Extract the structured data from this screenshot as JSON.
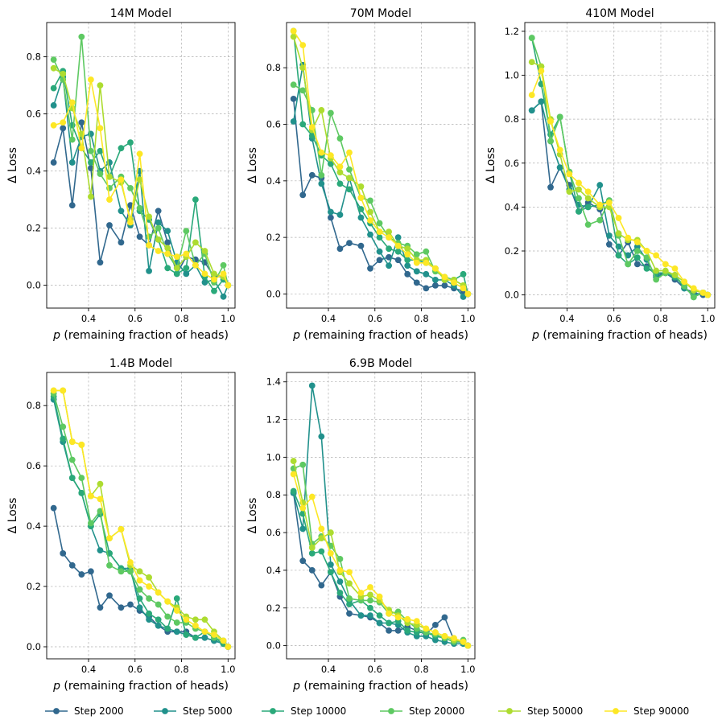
{
  "legend": {
    "entries": [
      "Step 2000",
      "Step 5000",
      "Step 10000",
      "Step 20000",
      "Step 50000",
      "Step 90000"
    ],
    "colors": [
      "#31688e",
      "#21918c",
      "#2aa97a",
      "#5ec962",
      "#addc30",
      "#fde725"
    ]
  },
  "chart_data": [
    {
      "type": "line",
      "title": "14M Model",
      "xlabel": "p (remaining fraction of heads)",
      "ylabel": "Δ Loss",
      "xlim": [
        0.22,
        1.03
      ],
      "ylim": [
        -0.08,
        0.92
      ],
      "xticks": [
        0.4,
        0.6,
        0.8,
        1.0
      ],
      "xtick_labels": [
        "0.4",
        "0.6",
        "0.8",
        "1.0"
      ],
      "yticks": [
        0.0,
        0.2,
        0.4,
        0.6,
        0.8
      ],
      "ytick_labels": [
        "0.0",
        "0.2",
        "0.4",
        "0.6",
        "0.8"
      ],
      "x": [
        0.25,
        0.29,
        0.33,
        0.37,
        0.41,
        0.45,
        0.49,
        0.54,
        0.58,
        0.62,
        0.66,
        0.7,
        0.74,
        0.78,
        0.82,
        0.86,
        0.9,
        0.94,
        0.98,
        1.0
      ],
      "series": [
        {
          "name": "Step 2000",
          "values": [
            0.43,
            0.55,
            0.28,
            0.57,
            0.41,
            0.08,
            0.21,
            0.15,
            0.28,
            0.17,
            0.14,
            0.26,
            0.15,
            0.04,
            0.1,
            0.09,
            0.08,
            0.03,
            0.03,
            0.0
          ]
        },
        {
          "name": "Step 5000",
          "values": [
            0.63,
            0.73,
            0.43,
            0.52,
            0.53,
            0.4,
            0.43,
            0.26,
            0.21,
            0.4,
            0.05,
            0.22,
            0.19,
            0.08,
            0.04,
            0.07,
            0.01,
            0.02,
            -0.04,
            0.0
          ]
        },
        {
          "name": "Step 10000",
          "values": [
            0.69,
            0.75,
            0.56,
            0.48,
            0.43,
            0.47,
            0.38,
            0.48,
            0.5,
            0.26,
            0.23,
            0.16,
            0.06,
            0.04,
            0.06,
            0.3,
            0.03,
            -0.02,
            0.02,
            0.0
          ]
        },
        {
          "name": "Step 20000",
          "values": [
            0.79,
            0.72,
            0.51,
            0.87,
            0.47,
            0.39,
            0.34,
            0.38,
            0.34,
            0.27,
            0.17,
            0.2,
            0.11,
            0.06,
            0.19,
            0.07,
            0.11,
            0.01,
            0.07,
            0.0
          ]
        },
        {
          "name": "Step 50000",
          "values": [
            0.76,
            0.74,
            0.62,
            0.53,
            0.31,
            0.7,
            0.38,
            0.36,
            0.23,
            0.37,
            0.24,
            0.16,
            0.13,
            0.06,
            0.1,
            0.15,
            0.12,
            0.04,
            0.03,
            0.0
          ]
        },
        {
          "name": "Step 90000",
          "values": [
            0.56,
            0.57,
            0.64,
            0.48,
            0.72,
            0.55,
            0.3,
            0.37,
            0.22,
            0.46,
            0.14,
            0.12,
            0.11,
            0.1,
            0.11,
            0.07,
            0.04,
            0.02,
            0.04,
            0.0
          ]
        }
      ]
    },
    {
      "type": "line",
      "title": "70M Model",
      "xlabel": "p (remaining fraction of heads)",
      "ylabel": "Δ Loss",
      "xlim": [
        0.22,
        1.03
      ],
      "ylim": [
        -0.05,
        0.96
      ],
      "xticks": [
        0.4,
        0.6,
        0.8,
        1.0
      ],
      "xtick_labels": [
        "0.4",
        "0.6",
        "0.8",
        "1.0"
      ],
      "yticks": [
        0.0,
        0.2,
        0.4,
        0.6,
        0.8
      ],
      "ytick_labels": [
        "0.0",
        "0.2",
        "0.4",
        "0.6",
        "0.8"
      ],
      "x": [
        0.25,
        0.29,
        0.33,
        0.37,
        0.41,
        0.45,
        0.49,
        0.54,
        0.58,
        0.62,
        0.66,
        0.7,
        0.74,
        0.78,
        0.82,
        0.86,
        0.9,
        0.94,
        0.98,
        1.0
      ],
      "series": [
        {
          "name": "Step 2000",
          "values": [
            0.69,
            0.35,
            0.42,
            0.41,
            0.27,
            0.16,
            0.18,
            0.17,
            0.09,
            0.12,
            0.13,
            0.12,
            0.07,
            0.04,
            0.02,
            0.03,
            0.03,
            0.02,
            0.01,
            0.0
          ]
        },
        {
          "name": "Step 5000",
          "values": [
            0.61,
            0.81,
            0.55,
            0.39,
            0.29,
            0.28,
            0.41,
            0.27,
            0.21,
            0.15,
            0.1,
            0.2,
            0.1,
            0.08,
            0.07,
            0.05,
            0.05,
            0.03,
            -0.01,
            0.0
          ]
        },
        {
          "name": "Step 10000",
          "values": [
            0.93,
            0.6,
            0.56,
            0.49,
            0.46,
            0.39,
            0.37,
            0.3,
            0.25,
            0.2,
            0.16,
            0.15,
            0.12,
            0.12,
            0.11,
            0.09,
            0.05,
            0.05,
            0.07,
            0.0
          ]
        },
        {
          "name": "Step 20000",
          "values": [
            0.74,
            0.72,
            0.65,
            0.42,
            0.64,
            0.55,
            0.44,
            0.34,
            0.33,
            0.25,
            0.2,
            0.18,
            0.17,
            0.14,
            0.15,
            0.08,
            0.06,
            0.05,
            0.03,
            0.0
          ]
        },
        {
          "name": "Step 50000",
          "values": [
            0.91,
            0.8,
            0.58,
            0.65,
            0.48,
            0.43,
            0.41,
            0.38,
            0.29,
            0.22,
            0.22,
            0.17,
            0.16,
            0.12,
            0.12,
            0.09,
            0.05,
            0.05,
            0.03,
            0.0
          ]
        },
        {
          "name": "Step 90000",
          "values": [
            0.93,
            0.88,
            0.59,
            0.5,
            0.49,
            0.45,
            0.5,
            0.34,
            0.26,
            0.22,
            0.2,
            0.17,
            0.14,
            0.11,
            0.11,
            0.09,
            0.06,
            0.04,
            0.02,
            0.0
          ]
        }
      ]
    },
    {
      "type": "line",
      "title": "410M Model",
      "xlabel": "p (remaining fraction of heads)",
      "ylabel": "Δ Loss",
      "xlim": [
        0.22,
        1.03
      ],
      "ylim": [
        -0.06,
        1.24
      ],
      "xticks": [
        0.4,
        0.6,
        0.8,
        1.0
      ],
      "xtick_labels": [
        "0.4",
        "0.6",
        "0.8",
        "1.0"
      ],
      "yticks": [
        0.0,
        0.2,
        0.4,
        0.6,
        0.8,
        1.0,
        1.2
      ],
      "ytick_labels": [
        "0.0",
        "0.2",
        "0.4",
        "0.6",
        "0.8",
        "1.0",
        "1.2"
      ],
      "x": [
        0.25,
        0.29,
        0.33,
        0.37,
        0.41,
        0.45,
        0.49,
        0.54,
        0.58,
        0.62,
        0.66,
        0.7,
        0.74,
        0.78,
        0.82,
        0.86,
        0.9,
        0.94,
        0.98,
        1.0
      ],
      "series": [
        {
          "name": "Step 2000",
          "values": [
            0.84,
            0.88,
            0.49,
            0.58,
            0.5,
            0.38,
            0.42,
            0.39,
            0.23,
            0.18,
            0.24,
            0.14,
            0.13,
            0.09,
            0.1,
            0.07,
            0.03,
            0.01,
            0.0,
            0.0
          ]
        },
        {
          "name": "Step 5000",
          "values": [
            0.84,
            0.88,
            0.7,
            0.58,
            0.48,
            0.41,
            0.4,
            0.5,
            0.27,
            0.22,
            0.18,
            0.22,
            0.16,
            0.08,
            0.1,
            0.09,
            0.03,
            0.0,
            0.01,
            0.0
          ]
        },
        {
          "name": "Step 10000",
          "values": [
            1.17,
            0.96,
            0.73,
            0.81,
            0.56,
            0.38,
            0.4,
            0.41,
            0.43,
            0.18,
            0.14,
            0.17,
            0.12,
            0.1,
            0.1,
            0.08,
            0.04,
            -0.01,
            0.01,
            0.0
          ]
        },
        {
          "name": "Step 20000",
          "values": [
            1.17,
            1.04,
            0.7,
            0.81,
            0.56,
            0.44,
            0.32,
            0.34,
            0.43,
            0.27,
            0.14,
            0.2,
            0.17,
            0.07,
            0.1,
            0.09,
            0.04,
            -0.01,
            0.01,
            0.0
          ]
        },
        {
          "name": "Step 50000",
          "values": [
            1.06,
            1.04,
            0.8,
            0.64,
            0.47,
            0.48,
            0.44,
            0.4,
            0.4,
            0.28,
            0.25,
            0.25,
            0.2,
            0.11,
            0.11,
            0.09,
            0.06,
            0.02,
            0.01,
            0.0
          ]
        },
        {
          "name": "Step 90000",
          "values": [
            0.91,
            1.02,
            0.79,
            0.66,
            0.55,
            0.51,
            0.47,
            0.41,
            0.42,
            0.35,
            0.26,
            0.24,
            0.2,
            0.18,
            0.14,
            0.12,
            0.06,
            0.03,
            0.01,
            0.0
          ]
        }
      ]
    },
    {
      "type": "line",
      "title": "1.4B Model",
      "xlabel": "p (remaining fraction of heads)",
      "ylabel": "Δ Loss",
      "xlim": [
        0.22,
        1.03
      ],
      "ylim": [
        -0.04,
        0.91
      ],
      "xticks": [
        0.4,
        0.6,
        0.8,
        1.0
      ],
      "xtick_labels": [
        "0.4",
        "0.6",
        "0.8",
        "1.0"
      ],
      "yticks": [
        0.0,
        0.2,
        0.4,
        0.6,
        0.8
      ],
      "ytick_labels": [
        "0.0",
        "0.2",
        "0.4",
        "0.6",
        "0.8"
      ],
      "x": [
        0.25,
        0.29,
        0.33,
        0.37,
        0.41,
        0.45,
        0.49,
        0.54,
        0.58,
        0.62,
        0.66,
        0.7,
        0.74,
        0.78,
        0.82,
        0.86,
        0.9,
        0.94,
        0.98,
        1.0
      ],
      "series": [
        {
          "name": "Step 2000",
          "values": [
            0.46,
            0.31,
            0.27,
            0.24,
            0.25,
            0.13,
            0.17,
            0.13,
            0.14,
            0.12,
            0.1,
            0.07,
            0.05,
            0.05,
            0.05,
            0.03,
            0.03,
            0.02,
            0.01,
            0.0
          ]
        },
        {
          "name": "Step 5000",
          "values": [
            0.82,
            0.68,
            0.56,
            0.51,
            0.4,
            0.32,
            0.31,
            0.26,
            0.26,
            0.13,
            0.09,
            0.07,
            0.06,
            0.05,
            0.04,
            0.03,
            0.03,
            0.02,
            0.01,
            0.0
          ]
        },
        {
          "name": "Step 10000",
          "values": [
            0.83,
            0.69,
            0.56,
            0.51,
            0.4,
            0.44,
            0.31,
            0.26,
            0.25,
            0.16,
            0.11,
            0.09,
            0.06,
            0.16,
            0.04,
            0.03,
            0.05,
            0.03,
            0.01,
            0.0
          ]
        },
        {
          "name": "Step 20000",
          "values": [
            0.84,
            0.73,
            0.62,
            0.56,
            0.41,
            0.45,
            0.27,
            0.25,
            0.25,
            0.19,
            0.16,
            0.14,
            0.1,
            0.08,
            0.08,
            0.06,
            0.05,
            0.03,
            0.02,
            0.0
          ]
        },
        {
          "name": "Step 50000",
          "values": [
            0.85,
            0.85,
            0.68,
            0.67,
            0.5,
            0.54,
            0.36,
            0.39,
            0.27,
            0.25,
            0.23,
            0.18,
            0.15,
            0.13,
            0.1,
            0.09,
            0.09,
            0.05,
            0.02,
            0.0
          ]
        },
        {
          "name": "Step 90000",
          "values": [
            0.85,
            0.85,
            0.68,
            0.67,
            0.5,
            0.49,
            0.36,
            0.39,
            0.28,
            0.22,
            0.2,
            0.18,
            0.15,
            0.12,
            0.09,
            0.07,
            0.05,
            0.04,
            0.02,
            0.0
          ]
        }
      ]
    },
    {
      "type": "line",
      "title": "6.9B Model",
      "xlabel": "p (remaining fraction of heads)",
      "ylabel": "Δ Loss",
      "xlim": [
        0.22,
        1.03
      ],
      "ylim": [
        -0.07,
        1.45
      ],
      "xticks": [
        0.4,
        0.6,
        0.8,
        1.0
      ],
      "xtick_labels": [
        "0.4",
        "0.6",
        "0.8",
        "1.0"
      ],
      "yticks": [
        0.0,
        0.2,
        0.4,
        0.6,
        0.8,
        1.0,
        1.2,
        1.4
      ],
      "ytick_labels": [
        "0.0",
        "0.2",
        "0.4",
        "0.6",
        "0.8",
        "1.0",
        "1.2",
        "1.4"
      ],
      "x": [
        0.25,
        0.29,
        0.33,
        0.37,
        0.41,
        0.45,
        0.49,
        0.54,
        0.58,
        0.62,
        0.66,
        0.7,
        0.74,
        0.78,
        0.82,
        0.86,
        0.9,
        0.94,
        0.98,
        1.0
      ],
      "series": [
        {
          "name": "Step 2000",
          "values": [
            0.81,
            0.45,
            0.4,
            0.32,
            0.39,
            0.26,
            0.17,
            0.16,
            0.15,
            0.12,
            0.08,
            0.08,
            0.1,
            0.08,
            0.06,
            0.11,
            0.15,
            0.03,
            0.02,
            0.0
          ]
        },
        {
          "name": "Step 5000",
          "values": [
            0.81,
            0.62,
            1.38,
            1.11,
            0.43,
            0.34,
            0.24,
            0.16,
            0.16,
            0.12,
            0.12,
            0.11,
            0.07,
            0.05,
            0.05,
            0.03,
            0.02,
            0.01,
            0.01,
            0.0
          ]
        },
        {
          "name": "Step 10000",
          "values": [
            0.82,
            0.7,
            0.49,
            0.5,
            0.39,
            0.28,
            0.22,
            0.24,
            0.2,
            0.16,
            0.12,
            0.13,
            0.08,
            0.07,
            0.07,
            0.05,
            0.04,
            0.02,
            0.02,
            0.0
          ]
        },
        {
          "name": "Step 20000",
          "values": [
            0.94,
            0.96,
            0.54,
            0.58,
            0.53,
            0.46,
            0.25,
            0.24,
            0.24,
            0.23,
            0.17,
            0.18,
            0.13,
            0.09,
            0.07,
            0.06,
            0.04,
            0.02,
            0.03,
            0.0
          ]
        },
        {
          "name": "Step 50000",
          "values": [
            0.98,
            0.76,
            0.52,
            0.57,
            0.6,
            0.39,
            0.33,
            0.26,
            0.27,
            0.24,
            0.19,
            0.16,
            0.12,
            0.11,
            0.09,
            0.07,
            0.05,
            0.03,
            0.02,
            0.0
          ]
        },
        {
          "name": "Step 90000",
          "values": [
            0.91,
            0.73,
            0.79,
            0.62,
            0.49,
            0.4,
            0.39,
            0.28,
            0.31,
            0.26,
            0.17,
            0.15,
            0.14,
            0.13,
            0.09,
            0.07,
            0.05,
            0.04,
            0.02,
            0.0
          ]
        }
      ]
    }
  ]
}
